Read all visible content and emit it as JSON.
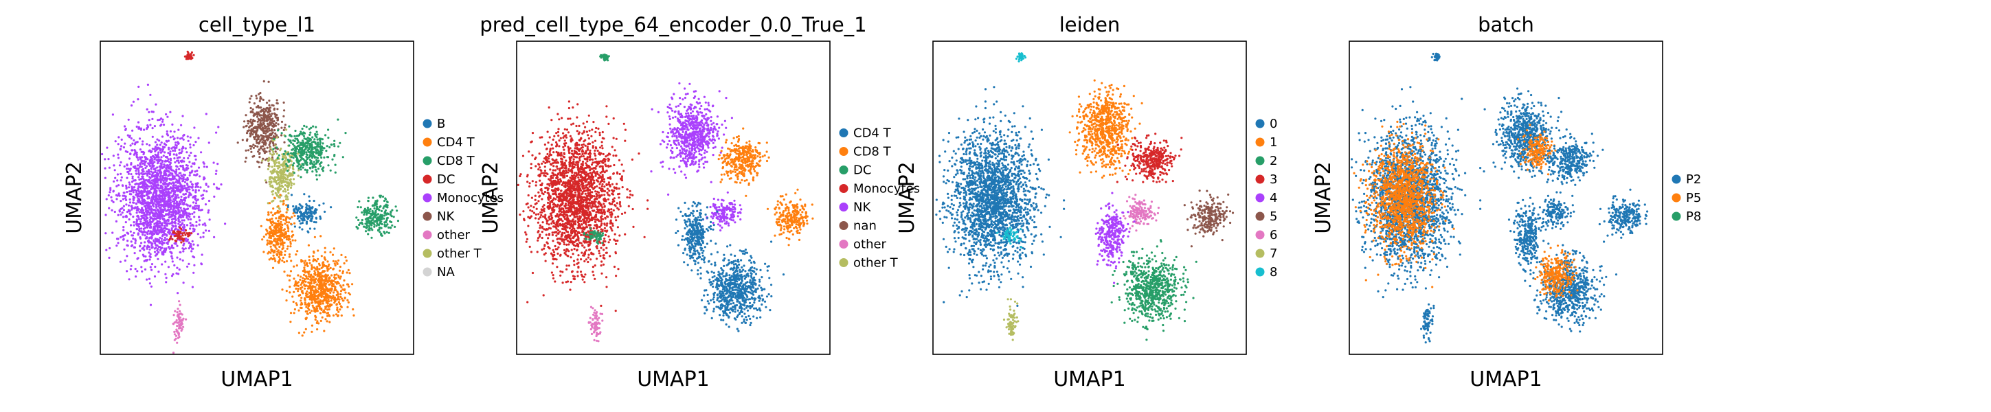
{
  "figure": {
    "chart_data": [
      {
        "type": "scatter",
        "title": "cell_type_l1",
        "xlabel": "UMAP1",
        "ylabel": "UMAP2",
        "legend_position": "right",
        "legend": [
          {
            "label": "B",
            "color": "#1f77b4"
          },
          {
            "label": "CD4 T",
            "color": "#ff7f0e"
          },
          {
            "label": "CD8 T",
            "color": "#279e68"
          },
          {
            "label": "DC",
            "color": "#d62728"
          },
          {
            "label": "Monocytes",
            "color": "#aa40fc"
          },
          {
            "label": "NK",
            "color": "#8c564b"
          },
          {
            "label": "other",
            "color": "#e377c2"
          },
          {
            "label": "other T",
            "color": "#b5bd61"
          },
          {
            "label": "NA",
            "color": "#d3d3d3"
          }
        ],
        "clusters": [
          {
            "group": "Monocytes",
            "cx": 0.19,
            "cy": 0.5,
            "rx": 0.12,
            "ry": 0.19
          },
          {
            "group": "DC",
            "cx": 0.25,
            "cy": 0.62,
            "rx": 0.03,
            "ry": 0.02
          },
          {
            "group": "other",
            "cx": 0.25,
            "cy": 0.9,
            "rx": 0.015,
            "ry": 0.05
          },
          {
            "group": "DC",
            "cx": 0.28,
            "cy": 0.05,
            "rx": 0.01,
            "ry": 0.01
          },
          {
            "group": "NK",
            "cx": 0.52,
            "cy": 0.28,
            "rx": 0.05,
            "ry": 0.09
          },
          {
            "group": "other T",
            "cx": 0.58,
            "cy": 0.42,
            "rx": 0.04,
            "ry": 0.08
          },
          {
            "group": "CD8 T",
            "cx": 0.66,
            "cy": 0.35,
            "rx": 0.07,
            "ry": 0.06
          },
          {
            "group": "B",
            "cx": 0.66,
            "cy": 0.55,
            "rx": 0.04,
            "ry": 0.04
          },
          {
            "group": "CD8 T",
            "cx": 0.88,
            "cy": 0.56,
            "rx": 0.05,
            "ry": 0.05
          },
          {
            "group": "CD4 T",
            "cx": 0.57,
            "cy": 0.62,
            "rx": 0.04,
            "ry": 0.08
          },
          {
            "group": "CD4 T",
            "cx": 0.7,
            "cy": 0.79,
            "rx": 0.08,
            "ry": 0.09
          }
        ]
      },
      {
        "type": "scatter",
        "title": "pred_cell_type_64_encoder_0.0_True_1",
        "xlabel": "UMAP1",
        "ylabel": "UMAP2",
        "legend_position": "right",
        "legend": [
          {
            "label": "CD4 T",
            "color": "#1f77b4"
          },
          {
            "label": "CD8 T",
            "color": "#ff7f0e"
          },
          {
            "label": "DC",
            "color": "#279e68"
          },
          {
            "label": "Monocytes",
            "color": "#d62728"
          },
          {
            "label": "NK",
            "color": "#aa40fc"
          },
          {
            "label": "nan",
            "color": "#8c564b"
          },
          {
            "label": "other",
            "color": "#e377c2"
          },
          {
            "label": "other T",
            "color": "#b5bd61"
          }
        ],
        "clusters": [
          {
            "group": "Monocytes",
            "cx": 0.19,
            "cy": 0.5,
            "rx": 0.12,
            "ry": 0.19
          },
          {
            "group": "DC",
            "cx": 0.25,
            "cy": 0.62,
            "rx": 0.03,
            "ry": 0.02
          },
          {
            "group": "other",
            "cx": 0.25,
            "cy": 0.9,
            "rx": 0.015,
            "ry": 0.05
          },
          {
            "group": "DC",
            "cx": 0.28,
            "cy": 0.05,
            "rx": 0.01,
            "ry": 0.01
          },
          {
            "group": "NK",
            "cx": 0.56,
            "cy": 0.3,
            "rx": 0.07,
            "ry": 0.1
          },
          {
            "group": "CD8 T",
            "cx": 0.72,
            "cy": 0.38,
            "rx": 0.06,
            "ry": 0.06
          },
          {
            "group": "NK",
            "cx": 0.66,
            "cy": 0.55,
            "rx": 0.04,
            "ry": 0.04
          },
          {
            "group": "CD8 T",
            "cx": 0.88,
            "cy": 0.56,
            "rx": 0.05,
            "ry": 0.05
          },
          {
            "group": "CD4 T",
            "cx": 0.57,
            "cy": 0.62,
            "rx": 0.04,
            "ry": 0.08
          },
          {
            "group": "CD4 T",
            "cx": 0.7,
            "cy": 0.79,
            "rx": 0.08,
            "ry": 0.09
          }
        ]
      },
      {
        "type": "scatter",
        "title": "leiden",
        "xlabel": "UMAP1",
        "ylabel": "UMAP2",
        "legend_position": "right",
        "legend": [
          {
            "label": "0",
            "color": "#1f77b4"
          },
          {
            "label": "1",
            "color": "#ff7f0e"
          },
          {
            "label": "2",
            "color": "#279e68"
          },
          {
            "label": "3",
            "color": "#d62728"
          },
          {
            "label": "4",
            "color": "#aa40fc"
          },
          {
            "label": "5",
            "color": "#8c564b"
          },
          {
            "label": "6",
            "color": "#e377c2"
          },
          {
            "label": "7",
            "color": "#b5bd61"
          },
          {
            "label": "8",
            "color": "#17becf"
          }
        ],
        "clusters": [
          {
            "group": "0",
            "cx": 0.19,
            "cy": 0.5,
            "rx": 0.12,
            "ry": 0.19
          },
          {
            "group": "8",
            "cx": 0.25,
            "cy": 0.62,
            "rx": 0.03,
            "ry": 0.02
          },
          {
            "group": "7",
            "cx": 0.25,
            "cy": 0.9,
            "rx": 0.015,
            "ry": 0.05
          },
          {
            "group": "8",
            "cx": 0.28,
            "cy": 0.05,
            "rx": 0.01,
            "ry": 0.01
          },
          {
            "group": "1",
            "cx": 0.55,
            "cy": 0.28,
            "rx": 0.07,
            "ry": 0.11
          },
          {
            "group": "3",
            "cx": 0.7,
            "cy": 0.38,
            "rx": 0.06,
            "ry": 0.06
          },
          {
            "group": "6",
            "cx": 0.66,
            "cy": 0.55,
            "rx": 0.04,
            "ry": 0.04
          },
          {
            "group": "5",
            "cx": 0.88,
            "cy": 0.56,
            "rx": 0.05,
            "ry": 0.05
          },
          {
            "group": "4",
            "cx": 0.57,
            "cy": 0.62,
            "rx": 0.04,
            "ry": 0.08
          },
          {
            "group": "2",
            "cx": 0.7,
            "cy": 0.79,
            "rx": 0.08,
            "ry": 0.09
          }
        ]
      },
      {
        "type": "scatter",
        "title": "batch",
        "xlabel": "UMAP1",
        "ylabel": "UMAP2",
        "legend_position": "right",
        "legend": [
          {
            "label": "P2",
            "color": "#1f77b4"
          },
          {
            "label": "P5",
            "color": "#ff7f0e"
          },
          {
            "label": "P8",
            "color": "#279e68"
          }
        ],
        "clusters": [
          {
            "group": "P2",
            "cx": 0.19,
            "cy": 0.5,
            "rx": 0.12,
            "ry": 0.19
          },
          {
            "group": "P5",
            "cx": 0.17,
            "cy": 0.5,
            "rx": 0.09,
            "ry": 0.15
          },
          {
            "group": "P2",
            "cx": 0.25,
            "cy": 0.9,
            "rx": 0.015,
            "ry": 0.05
          },
          {
            "group": "P2",
            "cx": 0.28,
            "cy": 0.05,
            "rx": 0.01,
            "ry": 0.01
          },
          {
            "group": "P2",
            "cx": 0.56,
            "cy": 0.3,
            "rx": 0.07,
            "ry": 0.1
          },
          {
            "group": "P5",
            "cx": 0.6,
            "cy": 0.35,
            "rx": 0.04,
            "ry": 0.05
          },
          {
            "group": "P2",
            "cx": 0.7,
            "cy": 0.38,
            "rx": 0.06,
            "ry": 0.06
          },
          {
            "group": "P2",
            "cx": 0.66,
            "cy": 0.55,
            "rx": 0.04,
            "ry": 0.04
          },
          {
            "group": "P2",
            "cx": 0.88,
            "cy": 0.56,
            "rx": 0.05,
            "ry": 0.05
          },
          {
            "group": "P2",
            "cx": 0.57,
            "cy": 0.62,
            "rx": 0.04,
            "ry": 0.08
          },
          {
            "group": "P2",
            "cx": 0.7,
            "cy": 0.79,
            "rx": 0.08,
            "ry": 0.09
          },
          {
            "group": "P5",
            "cx": 0.66,
            "cy": 0.75,
            "rx": 0.05,
            "ry": 0.06
          }
        ]
      }
    ]
  }
}
